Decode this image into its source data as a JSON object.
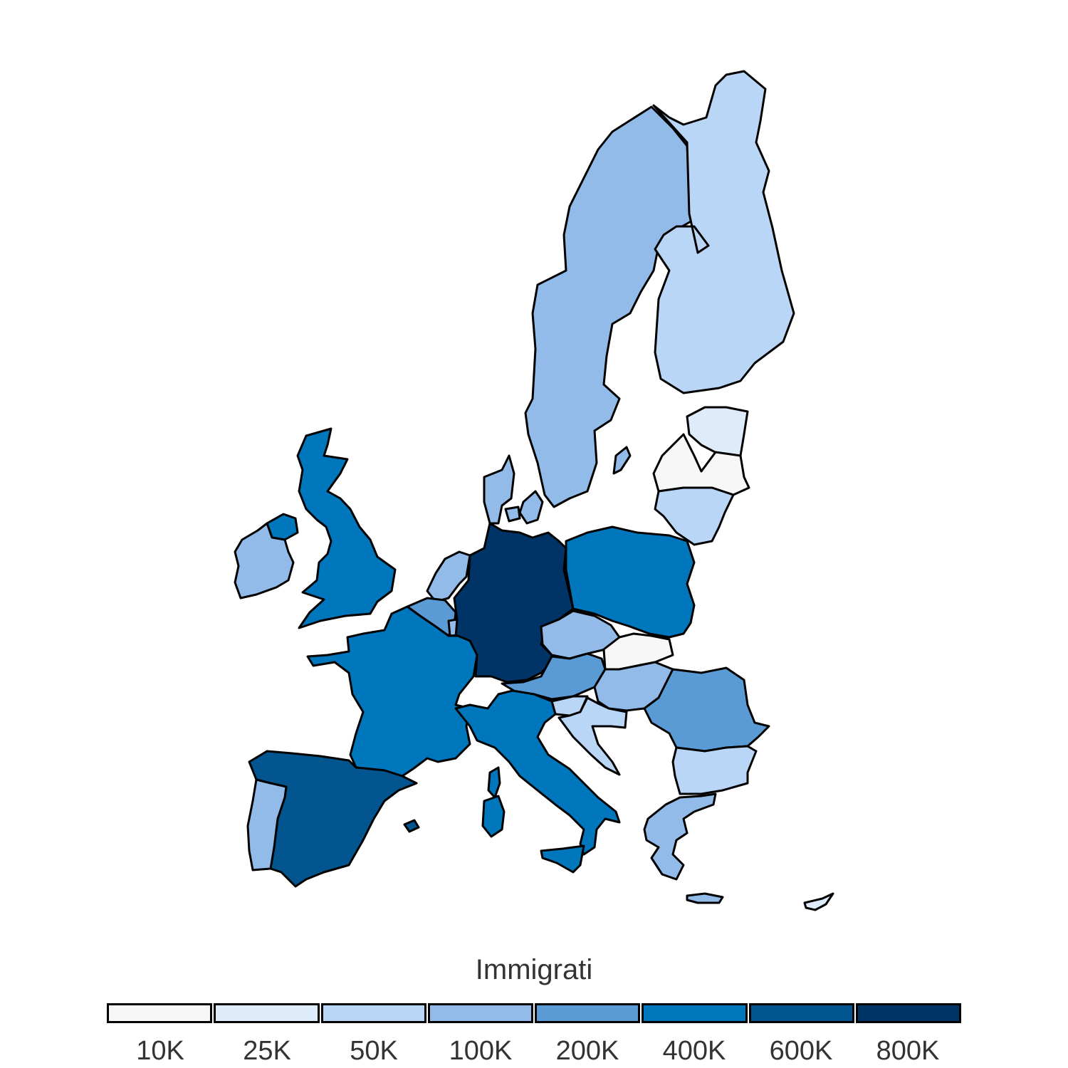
{
  "legend": {
    "title": "Immigrati",
    "bins": [
      {
        "label": "10K",
        "color": "#f7f7f7"
      },
      {
        "label": "25K",
        "color": "#deebfb"
      },
      {
        "label": "50K",
        "color": "#bad6f7"
      },
      {
        "label": "100K",
        "color": "#93bbe9"
      },
      {
        "label": "200K",
        "color": "#5b9bd5"
      },
      {
        "label": "400K",
        "color": "#0077bd"
      },
      {
        "label": "600K",
        "color": "#02558f"
      },
      {
        "label": "800K",
        "color": "#003366"
      }
    ]
  },
  "regions": [
    {
      "id": "sweden",
      "bin": 3
    },
    {
      "id": "finland",
      "bin": 2
    },
    {
      "id": "estonia",
      "bin": 1
    },
    {
      "id": "latvia",
      "bin": 0
    },
    {
      "id": "lithuania",
      "bin": 2
    },
    {
      "id": "denmark",
      "bin": 3
    },
    {
      "id": "united-kingdom",
      "bin": 5
    },
    {
      "id": "ireland",
      "bin": 3
    },
    {
      "id": "netherlands",
      "bin": 3
    },
    {
      "id": "belgium",
      "bin": 4
    },
    {
      "id": "luxembourg",
      "bin": 3
    },
    {
      "id": "germany",
      "bin": 7
    },
    {
      "id": "poland",
      "bin": 5
    },
    {
      "id": "czechia",
      "bin": 3
    },
    {
      "id": "slovakia",
      "bin": 0
    },
    {
      "id": "austria",
      "bin": 4
    },
    {
      "id": "hungary",
      "bin": 3
    },
    {
      "id": "slovenia",
      "bin": 2
    },
    {
      "id": "croatia",
      "bin": 2
    },
    {
      "id": "romania",
      "bin": 4
    },
    {
      "id": "bulgaria",
      "bin": 2
    },
    {
      "id": "greece",
      "bin": 3
    },
    {
      "id": "france",
      "bin": 5
    },
    {
      "id": "spain",
      "bin": 6
    },
    {
      "id": "portugal",
      "bin": 3
    },
    {
      "id": "italy",
      "bin": 5
    },
    {
      "id": "cyprus",
      "bin": 1
    }
  ]
}
